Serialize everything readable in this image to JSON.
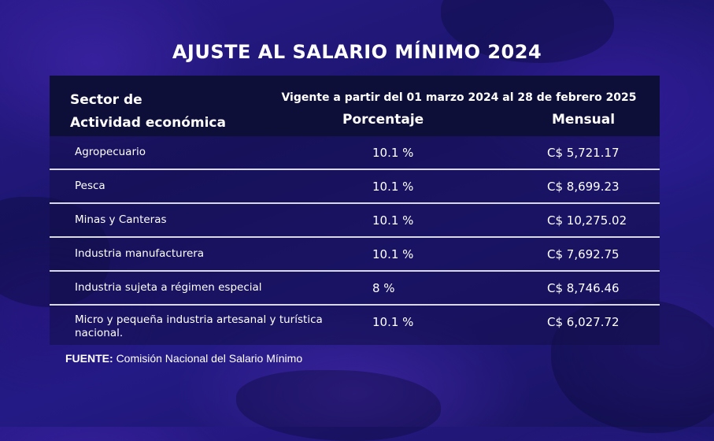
{
  "title": "AJUSTE AL SALARIO MÍNIMO 2024",
  "table": {
    "header": {
      "sector_line1": "Sector de",
      "sector_line2": "Actividad económica",
      "vigente": "Vigente a partir del 01 marzo 2024 al 28 de febrero 2025",
      "porcentaje": "Porcentaje",
      "mensual": "Mensual"
    },
    "rows": [
      {
        "sector": "Agropecuario",
        "porcentaje": "10.1 %",
        "mensual": "C$ 5,721.17"
      },
      {
        "sector": "Pesca",
        "porcentaje": "10.1 %",
        "mensual": "C$ 8,699.23"
      },
      {
        "sector": "Minas y Canteras",
        "porcentaje": "10.1 %",
        "mensual": "C$ 10,275.02"
      },
      {
        "sector": "Industria manufacturera",
        "porcentaje": "10.1 %",
        "mensual": "C$ 7,692.75"
      },
      {
        "sector": "Industria sujeta a régimen especial",
        "porcentaje": "8 %",
        "mensual": "C$ 8,746.46"
      },
      {
        "sector": "Micro y pequeña industria artesanal y turística nacional.",
        "porcentaje": "10.1 %",
        "mensual": "C$ 6,027.72"
      }
    ]
  },
  "source": {
    "label": "FUENTE:",
    "text": "Comisión Nacional del Salario Mínimo"
  },
  "colors": {
    "header_bg": "#0e0f38",
    "divider": "#d9d9e6",
    "text": "#ffffff"
  }
}
